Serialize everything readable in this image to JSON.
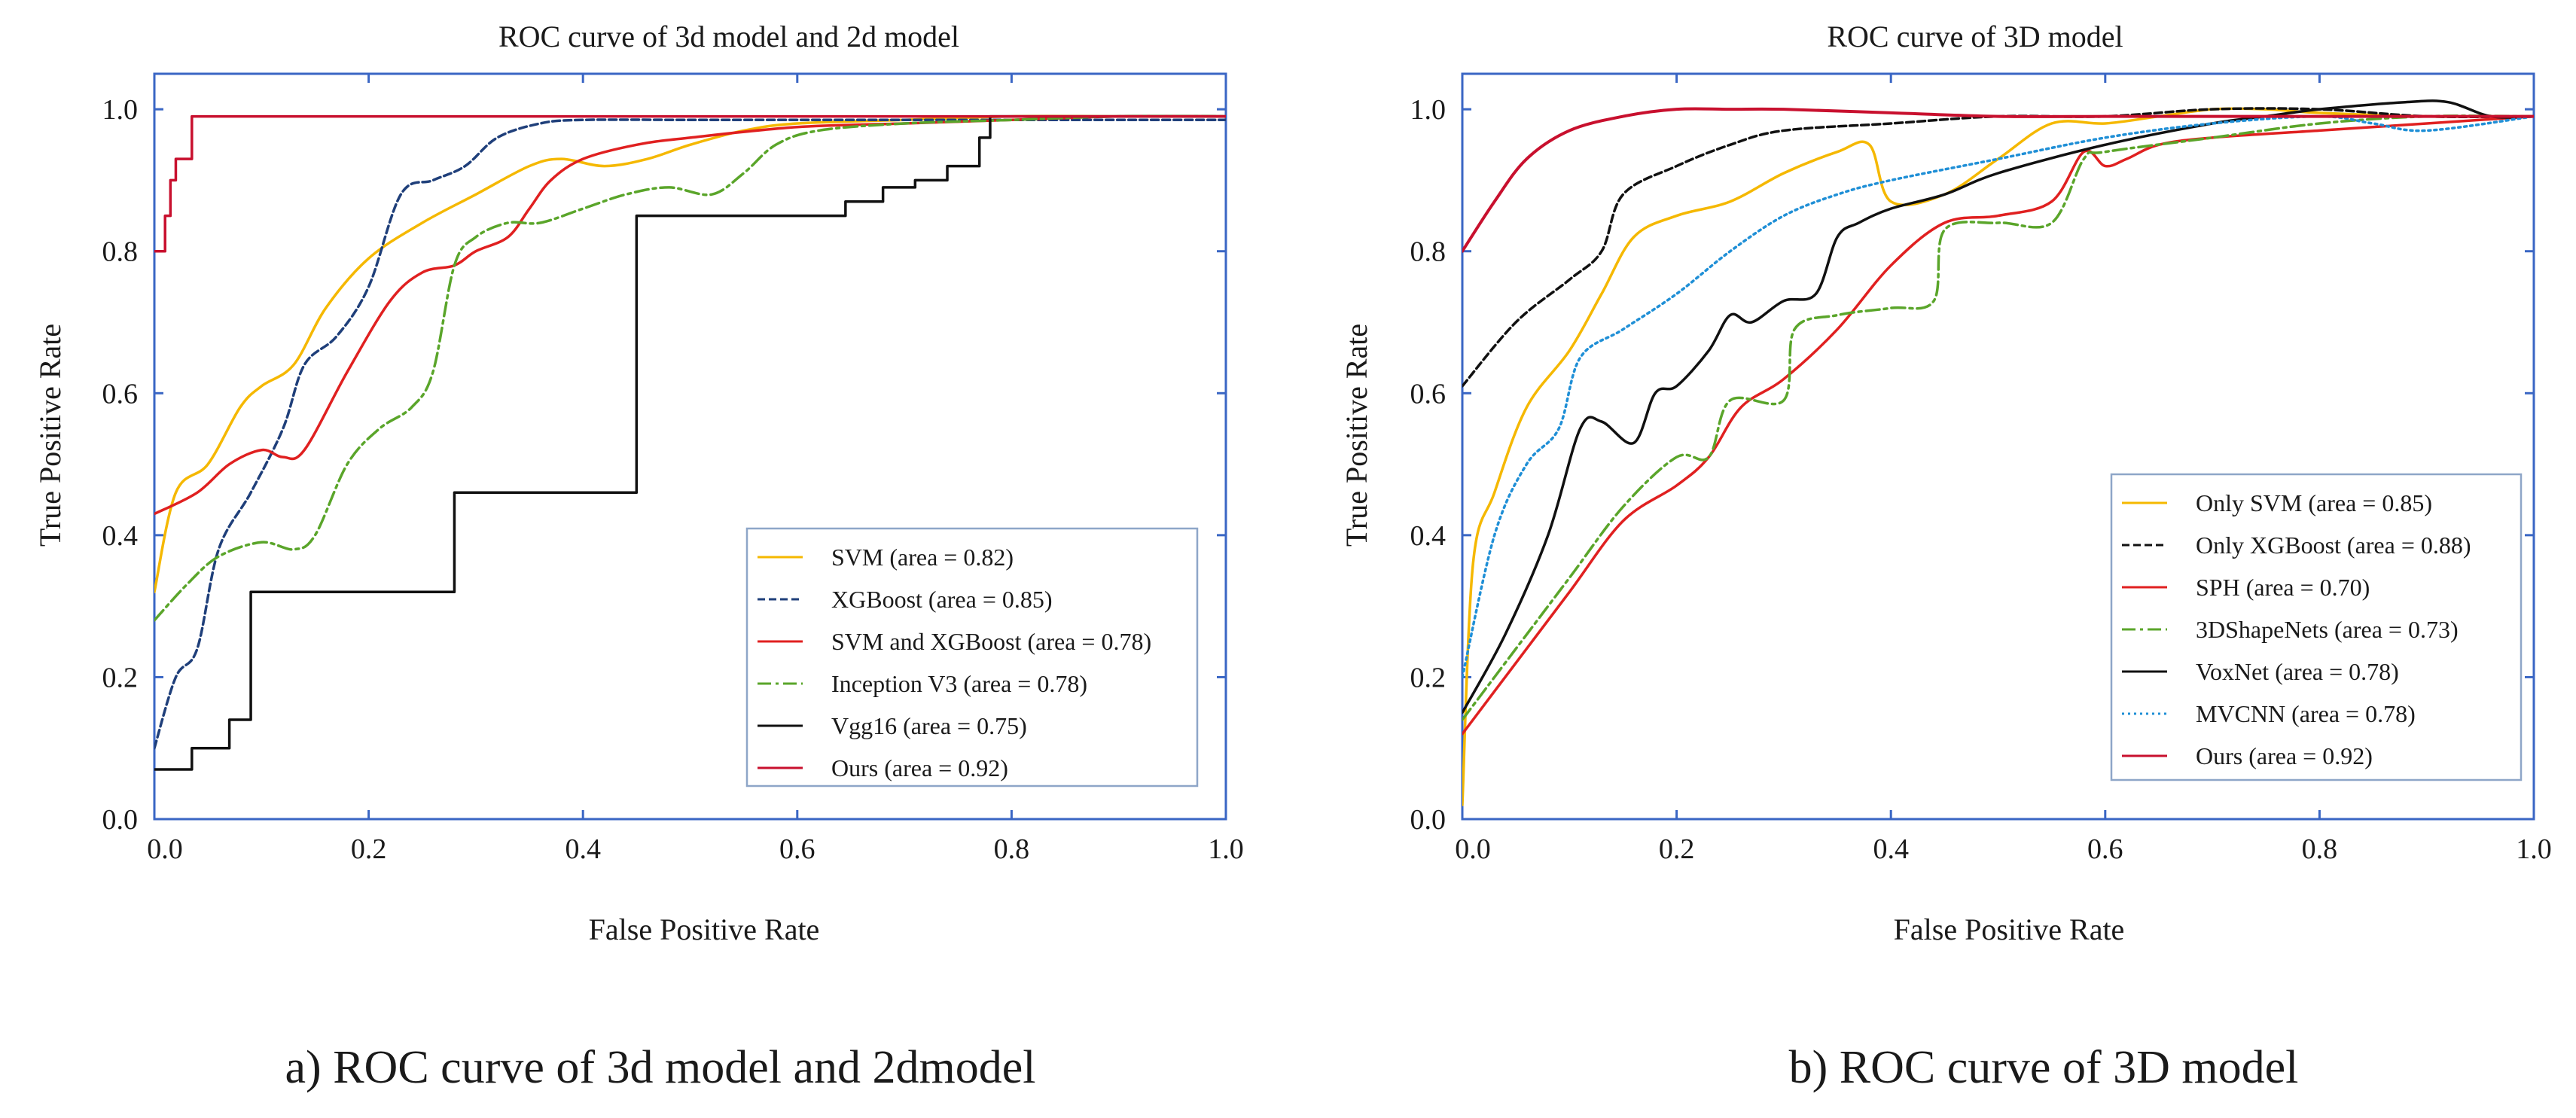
{
  "chart_data": [
    {
      "type": "line",
      "title": "ROC curve of  3d model and 2d model",
      "caption": "a) ROC curve of 3d model and 2dmodel",
      "xlabel": "False  Positive  Rate",
      "ylabel": "True  Positive  Rate",
      "xlim": [
        0,
        1.0
      ],
      "ylim": [
        0,
        1.05
      ],
      "xticks": [
        "0.0",
        "0.2",
        "0.4",
        "0.6",
        "0.8",
        "1.0"
      ],
      "yticks": [
        "0.0",
        "0.2",
        "0.4",
        "0.6",
        "0.8",
        "1.0"
      ],
      "grid": false,
      "legend_position": "bottom-right",
      "series": [
        {
          "name": "SVM  (area = 0.82)",
          "color": "#f5b800",
          "dash": "solid",
          "width": 3.5,
          "interp": "smooth",
          "x": [
            0,
            0.02,
            0.05,
            0.08,
            0.1,
            0.13,
            0.16,
            0.2,
            0.25,
            0.3,
            0.35,
            0.38,
            0.42,
            0.46,
            0.5,
            0.55,
            0.6,
            0.7,
            0.8,
            0.9,
            1.0
          ],
          "y": [
            0.32,
            0.46,
            0.5,
            0.58,
            0.61,
            0.64,
            0.72,
            0.79,
            0.84,
            0.88,
            0.92,
            0.93,
            0.92,
            0.93,
            0.95,
            0.97,
            0.98,
            0.985,
            0.99,
            0.99,
            0.99
          ]
        },
        {
          "name": "XGBoost  (area = 0.85)",
          "color": "#1f3f7a",
          "dash": "dashed",
          "width": 3.5,
          "interp": "smooth",
          "x": [
            0,
            0.02,
            0.04,
            0.06,
            0.09,
            0.12,
            0.14,
            0.17,
            0.2,
            0.23,
            0.26,
            0.29,
            0.32,
            0.36,
            0.4,
            0.5,
            0.6,
            0.7,
            0.8,
            0.9,
            1.0
          ],
          "y": [
            0.1,
            0.2,
            0.24,
            0.38,
            0.46,
            0.55,
            0.64,
            0.68,
            0.75,
            0.88,
            0.9,
            0.92,
            0.96,
            0.98,
            0.985,
            0.985,
            0.985,
            0.985,
            0.985,
            0.985,
            0.985
          ]
        },
        {
          "name": "SVM and XGBoost  (area = 0.78)",
          "color": "#e02020",
          "dash": "solid",
          "width": 3.5,
          "interp": "smooth",
          "x": [
            0,
            0.04,
            0.07,
            0.1,
            0.12,
            0.14,
            0.18,
            0.22,
            0.25,
            0.28,
            0.3,
            0.33,
            0.35,
            0.37,
            0.4,
            0.45,
            0.5,
            0.6,
            0.7,
            0.8,
            0.9,
            1.0
          ],
          "y": [
            0.43,
            0.46,
            0.5,
            0.52,
            0.51,
            0.52,
            0.63,
            0.73,
            0.77,
            0.78,
            0.8,
            0.82,
            0.86,
            0.9,
            0.93,
            0.95,
            0.96,
            0.975,
            0.98,
            0.985,
            0.99,
            0.99
          ]
        },
        {
          "name": "Inception V3  (area = 0.78)",
          "color": "#5aa52a",
          "dash": "dashdot",
          "width": 3.5,
          "interp": "smooth",
          "x": [
            0,
            0.03,
            0.06,
            0.1,
            0.13,
            0.15,
            0.18,
            0.21,
            0.24,
            0.26,
            0.28,
            0.3,
            0.33,
            0.36,
            0.4,
            0.44,
            0.48,
            0.52,
            0.55,
            0.58,
            0.62,
            0.7,
            0.8,
            0.9,
            1.0
          ],
          "y": [
            0.28,
            0.33,
            0.37,
            0.39,
            0.38,
            0.4,
            0.5,
            0.55,
            0.58,
            0.63,
            0.78,
            0.82,
            0.84,
            0.84,
            0.86,
            0.88,
            0.89,
            0.88,
            0.91,
            0.95,
            0.97,
            0.98,
            0.985,
            0.99,
            0.99
          ]
        },
        {
          "name": "Vgg16  (area = 0.75)",
          "color": "#111111",
          "dash": "solid",
          "width": 3.5,
          "interp": "step",
          "x": [
            0,
            0.035,
            0.035,
            0.07,
            0.07,
            0.09,
            0.09,
            0.28,
            0.28,
            0.45,
            0.45,
            0.645,
            0.645,
            0.68,
            0.68,
            0.71,
            0.71,
            0.74,
            0.74,
            0.77,
            0.77,
            0.78,
            0.78,
            1.0
          ],
          "y": [
            0.07,
            0.07,
            0.1,
            0.1,
            0.14,
            0.14,
            0.32,
            0.32,
            0.46,
            0.46,
            0.85,
            0.85,
            0.87,
            0.87,
            0.89,
            0.89,
            0.9,
            0.9,
            0.92,
            0.92,
            0.96,
            0.96,
            0.99,
            0.99
          ]
        },
        {
          "name": "Ours  (area = 0.92)",
          "color": "#c8102e",
          "dash": "solid",
          "width": 3.5,
          "interp": "step",
          "x": [
            0,
            0.01,
            0.01,
            0.015,
            0.015,
            0.02,
            0.02,
            0.035,
            0.035,
            0.12,
            0.12,
            1.0
          ],
          "y": [
            0.8,
            0.8,
            0.85,
            0.85,
            0.9,
            0.9,
            0.93,
            0.93,
            0.99,
            0.99,
            0.99,
            0.99
          ]
        }
      ]
    },
    {
      "type": "line",
      "title": "ROC curve of  3D model",
      "caption": "b) ROC curve of 3D model",
      "xlabel": "False  Positive  Rate",
      "ylabel": "True  Positive  Rate",
      "xlim": [
        0,
        1.0
      ],
      "ylim": [
        0,
        1.05
      ],
      "xticks": [
        "0.0",
        "0.2",
        "0.4",
        "0.6",
        "0.8",
        "1.0"
      ],
      "yticks": [
        "0.0",
        "0.2",
        "0.4",
        "0.6",
        "0.8",
        "1.0"
      ],
      "grid": false,
      "legend_position": "bottom-right",
      "series": [
        {
          "name": "Only SVM  (area = 0.85)",
          "color": "#f5b800",
          "dash": "solid",
          "width": 3.5,
          "interp": "smooth",
          "x": [
            0,
            0.01,
            0.03,
            0.06,
            0.1,
            0.13,
            0.16,
            0.2,
            0.25,
            0.3,
            0.35,
            0.38,
            0.4,
            0.45,
            0.5,
            0.55,
            0.6,
            0.65,
            0.7,
            0.75,
            0.8,
            0.9,
            1.0
          ],
          "y": [
            0.02,
            0.36,
            0.46,
            0.58,
            0.66,
            0.74,
            0.82,
            0.85,
            0.87,
            0.91,
            0.94,
            0.95,
            0.87,
            0.88,
            0.93,
            0.98,
            0.98,
            0.99,
            1.0,
            1.0,
            0.995,
            0.99,
            0.99
          ]
        },
        {
          "name": "Only XGBoost  (area = 0.88)",
          "color": "#111111",
          "dash": "dashed",
          "width": 3.5,
          "interp": "smooth",
          "x": [
            0,
            0.05,
            0.1,
            0.13,
            0.15,
            0.2,
            0.25,
            0.3,
            0.4,
            0.5,
            0.6,
            0.7,
            0.8,
            0.9,
            1.0
          ],
          "y": [
            0.61,
            0.7,
            0.76,
            0.8,
            0.88,
            0.92,
            0.95,
            0.97,
            0.98,
            0.99,
            0.99,
            1.0,
            1.0,
            0.99,
            0.99
          ]
        },
        {
          "name": "SPH  (area = 0.70)",
          "color": "#e02020",
          "dash": "solid",
          "width": 3.5,
          "interp": "smooth",
          "x": [
            0,
            0.05,
            0.1,
            0.15,
            0.2,
            0.23,
            0.26,
            0.3,
            0.35,
            0.4,
            0.45,
            0.5,
            0.55,
            0.58,
            0.6,
            0.62,
            0.65,
            0.7,
            0.8,
            0.9,
            1.0
          ],
          "y": [
            0.12,
            0.22,
            0.32,
            0.42,
            0.47,
            0.51,
            0.58,
            0.62,
            0.69,
            0.78,
            0.84,
            0.85,
            0.87,
            0.94,
            0.92,
            0.93,
            0.95,
            0.96,
            0.97,
            0.98,
            0.99
          ]
        },
        {
          "name": "3DShapeNets  (area = 0.73)",
          "color": "#5aa52a",
          "dash": "dashdot",
          "width": 3.5,
          "interp": "smooth",
          "x": [
            0,
            0.05,
            0.1,
            0.15,
            0.2,
            0.23,
            0.25,
            0.3,
            0.31,
            0.35,
            0.4,
            0.44,
            0.45,
            0.5,
            0.55,
            0.58,
            0.6,
            0.7,
            0.8,
            0.9,
            1.0
          ],
          "y": [
            0.14,
            0.24,
            0.34,
            0.44,
            0.51,
            0.51,
            0.59,
            0.59,
            0.69,
            0.71,
            0.72,
            0.73,
            0.83,
            0.84,
            0.84,
            0.93,
            0.94,
            0.96,
            0.98,
            0.99,
            0.99
          ]
        },
        {
          "name": "VoxNet  (area = 0.78)",
          "color": "#111111",
          "dash": "solid",
          "width": 3.5,
          "interp": "smooth",
          "x": [
            0,
            0.04,
            0.08,
            0.11,
            0.13,
            0.16,
            0.18,
            0.2,
            0.23,
            0.25,
            0.27,
            0.3,
            0.33,
            0.35,
            0.37,
            0.4,
            0.45,
            0.5,
            0.6,
            0.7,
            0.75,
            0.8,
            0.88,
            0.92,
            0.96,
            1.0
          ],
          "y": [
            0.15,
            0.26,
            0.4,
            0.55,
            0.56,
            0.53,
            0.6,
            0.61,
            0.66,
            0.71,
            0.7,
            0.73,
            0.74,
            0.82,
            0.84,
            0.86,
            0.88,
            0.91,
            0.95,
            0.98,
            0.99,
            1.0,
            1.01,
            1.01,
            0.99,
            0.99
          ]
        },
        {
          "name": "MVCNN  (area = 0.78)",
          "color": "#1f8fd6",
          "dash": "dotted",
          "width": 3.5,
          "interp": "smooth",
          "x": [
            0,
            0.03,
            0.06,
            0.09,
            0.11,
            0.15,
            0.2,
            0.25,
            0.3,
            0.35,
            0.4,
            0.5,
            0.6,
            0.7,
            0.8,
            0.85,
            0.9,
            1.0
          ],
          "y": [
            0.2,
            0.4,
            0.5,
            0.55,
            0.65,
            0.69,
            0.74,
            0.8,
            0.85,
            0.88,
            0.9,
            0.93,
            0.96,
            0.98,
            0.99,
            0.98,
            0.97,
            0.99
          ]
        },
        {
          "name": "Ours  (area = 0.92)",
          "color": "#c8102e",
          "dash": "solid",
          "width": 4,
          "interp": "smooth",
          "x": [
            0,
            0.03,
            0.06,
            0.1,
            0.15,
            0.2,
            0.25,
            0.3,
            0.4,
            0.5,
            0.6,
            0.7,
            0.8,
            0.9,
            1.0
          ],
          "y": [
            0.8,
            0.87,
            0.93,
            0.97,
            0.99,
            1.0,
            1.0,
            1.0,
            0.995,
            0.99,
            0.99,
            0.99,
            0.99,
            0.99,
            0.99
          ]
        }
      ]
    }
  ]
}
